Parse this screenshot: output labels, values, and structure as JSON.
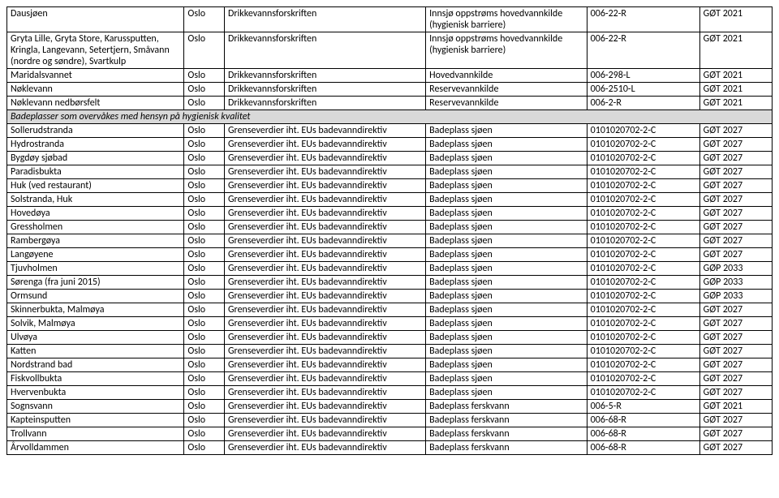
{
  "table": {
    "columns_pct": [
      22,
      5,
      25,
      20,
      14,
      9
    ],
    "border_color": "#000000",
    "background_color": "#ffffff",
    "header_bg": "#d9d9d9",
    "font_size_pt": 12,
    "rows": [
      {
        "type": "data",
        "cells": [
          "Dausjøen",
          "Oslo",
          "Drikkevannsforskriften",
          "Innsjø oppstrøms hovedvannkilde (hygienisk barriere)",
          "006-22-R",
          "GØT 2021"
        ]
      },
      {
        "type": "data",
        "cells": [
          "Gryta Lille, Gryta Store, Karussputten, Kringla, Langevann, Setertjern, Småvann (nordre og søndre), Svartkulp",
          "Oslo",
          "Drikkevannsforskriften",
          "Innsjø oppstrøms hovedvannkilde (hygienisk barriere)",
          "006-22-R",
          "GØT 2021"
        ]
      },
      {
        "type": "data",
        "cells": [
          "Maridalsvannet",
          "Oslo",
          "Drikkevannsforskriften",
          "Hovedvannkilde",
          "006-298-L",
          "GØT 2021"
        ]
      },
      {
        "type": "data",
        "cells": [
          "Nøklevann",
          "Oslo",
          "Drikkevannsforskriften",
          "Reservevannkilde",
          "006-2510-L",
          "GØT 2021"
        ]
      },
      {
        "type": "data",
        "cells": [
          "Nøklevann nedbørsfelt",
          "Oslo",
          "Drikkevannsforskriften",
          "Reservevannkilde",
          "006-2-R",
          "GØT 2021"
        ]
      },
      {
        "type": "section",
        "label": "Badeplasser som overvåkes med hensyn på hygienisk kvalitet"
      },
      {
        "type": "data",
        "cells": [
          "Sollerudstranda",
          "Oslo",
          "Grenseverdier iht. EUs badevanndirektiv",
          "Badeplass sjøen",
          "0101020702-2-C",
          "GØT 2027"
        ]
      },
      {
        "type": "data",
        "cells": [
          "Hydrostranda",
          "Oslo",
          "Grenseverdier iht. EUs badevanndirektiv",
          "Badeplass sjøen",
          "0101020702-2-C",
          "GØT 2027"
        ]
      },
      {
        "type": "data",
        "cells": [
          "Bygdøy sjøbad",
          "Oslo",
          "Grenseverdier iht. EUs badevanndirektiv",
          "Badeplass sjøen",
          "0101020702-2-C",
          "GØT 2027"
        ]
      },
      {
        "type": "data",
        "cells": [
          "Paradisbukta",
          "Oslo",
          "Grenseverdier iht. EUs badevanndirektiv",
          "Badeplass sjøen",
          "0101020702-2-C",
          "GØT 2027"
        ]
      },
      {
        "type": "data",
        "cells": [
          "Huk (ved restaurant)",
          "Oslo",
          "Grenseverdier iht. EUs badevanndirektiv",
          "Badeplass sjøen",
          "0101020702-2-C",
          "GØT 2027"
        ]
      },
      {
        "type": "data",
        "cells": [
          "Solstranda, Huk",
          "Oslo",
          "Grenseverdier iht. EUs badevanndirektiv",
          "Badeplass sjøen",
          "0101020702-2-C",
          "GØT 2027"
        ]
      },
      {
        "type": "data",
        "cells": [
          "Hovedøya",
          "Oslo",
          "Grenseverdier iht. EUs badevanndirektiv",
          "Badeplass sjøen",
          "0101020702-2-C",
          "GØT 2027"
        ]
      },
      {
        "type": "data",
        "cells": [
          "Gressholmen",
          "Oslo",
          "Grenseverdier iht. EUs badevanndirektiv",
          "Badeplass sjøen",
          "0101020702-2-C",
          "GØT 2027"
        ]
      },
      {
        "type": "data",
        "cells": [
          "Rambergøya",
          "Oslo",
          "Grenseverdier iht. EUs badevanndirektiv",
          "Badeplass sjøen",
          "0101020702-2-C",
          "GØT 2027"
        ]
      },
      {
        "type": "data",
        "cells": [
          "Langøyene",
          "Oslo",
          "Grenseverdier iht. EUs badevanndirektiv",
          "Badeplass sjøen",
          "0101020702-2-C",
          "GØT 2027"
        ]
      },
      {
        "type": "data",
        "cells": [
          "Tjuvholmen",
          "Oslo",
          "Grenseverdier iht. EUs badevanndirektiv",
          "Badeplass sjøen",
          "0101020702-2-C",
          "GØP 2033"
        ]
      },
      {
        "type": "data",
        "cells": [
          "Sørenga (fra juni 2015)",
          "Oslo",
          "Grenseverdier iht. EUs badevanndirektiv",
          "Badeplass sjøen",
          "0101020702-2-C",
          "GØP 2033"
        ]
      },
      {
        "type": "data",
        "cells": [
          "Ormsund",
          "Oslo",
          "Grenseverdier iht. EUs badevanndirektiv",
          "Badeplass sjøen",
          "0101020702-2-C",
          "GØP 2033"
        ]
      },
      {
        "type": "data",
        "cells": [
          "Skinnerbukta, Malmøya",
          "Oslo",
          "Grenseverdier iht. EUs badevanndirektiv",
          "Badeplass sjøen",
          "0101020702-2-C",
          "GØT 2027"
        ]
      },
      {
        "type": "data",
        "cells": [
          "Solvik, Malmøya",
          "Oslo",
          "Grenseverdier iht. EUs badevanndirektiv",
          "Badeplass sjøen",
          "0101020702-2-C",
          "GØT 2027"
        ]
      },
      {
        "type": "data",
        "cells": [
          "Ulvøya",
          "Oslo",
          "Grenseverdier iht. EUs badevanndirektiv",
          "Badeplass sjøen",
          "0101020702-2-C",
          "GØT 2027"
        ]
      },
      {
        "type": "data",
        "cells": [
          "Katten",
          "Oslo",
          "Grenseverdier iht. EUs badevanndirektiv",
          "Badeplass sjøen",
          "0101020702-2-C",
          "GØT 2027"
        ]
      },
      {
        "type": "data",
        "cells": [
          "Nordstrand bad",
          "Oslo",
          "Grenseverdier iht. EUs badevanndirektiv",
          "Badeplass sjøen",
          "0101020702-2-C",
          "GØT 2027"
        ]
      },
      {
        "type": "data",
        "cells": [
          "Fiskvollbukta",
          "Oslo",
          "Grenseverdier iht. EUs badevanndirektiv",
          "Badeplass sjøen",
          "0101020702-2-C",
          "GØT 2027"
        ]
      },
      {
        "type": "data",
        "cells": [
          "Hvervenbukta",
          "Oslo",
          "Grenseverdier iht. EUs badevanndirektiv",
          "Badeplass sjøen",
          "0101020702-2-C",
          "GØT 2027"
        ]
      },
      {
        "type": "data",
        "cells": [
          "Sognsvann",
          "Oslo",
          "Grenseverdier iht. EUs badevanndirektiv",
          "Badeplass ferskvann",
          "006-5-R",
          "GØT 2021"
        ]
      },
      {
        "type": "data",
        "cells": [
          "Kapteinsputten",
          "Oslo",
          "Grenseverdier iht. EUs badevanndirektiv",
          "Badeplass ferskvann",
          "006-68-R",
          "GØT 2027"
        ]
      },
      {
        "type": "data",
        "cells": [
          "Trollvann",
          "Oslo",
          "Grenseverdier iht. EUs badevanndirektiv",
          "Badeplass ferskvann",
          "006-68-R",
          "GØT 2027"
        ]
      },
      {
        "type": "data",
        "cells": [
          "Årvolldammen",
          "Oslo",
          "Grenseverdier iht. EUs badevanndirektiv",
          "Badeplass ferskvann",
          "006-68-R",
          "GØT 2027"
        ]
      }
    ]
  }
}
